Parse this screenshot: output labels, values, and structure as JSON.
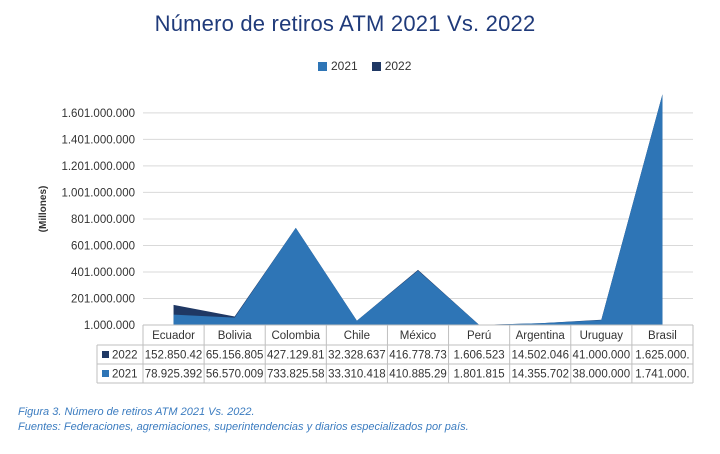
{
  "chart_data": {
    "type": "area",
    "title": "Número de retiros ATM 2021 Vs. 2022",
    "ylabel": "(Millones)",
    "xlabel": "",
    "ylim": [
      1000000,
      1751000000
    ],
    "yticks": [
      "1.000.000",
      "201.000.000",
      "401.000.000",
      "601.000.000",
      "801.000.000",
      "1.001.000.000",
      "1.201.000.000",
      "1.401.000.000",
      "1.601.000.000"
    ],
    "ytick_values": [
      1000000,
      201000000,
      401000000,
      601000000,
      801000000,
      1001000000,
      1201000000,
      1401000000,
      1601000000
    ],
    "categories": [
      "Ecuador",
      "Bolivia",
      "Colombia",
      "Chile",
      "México",
      "Perú",
      "Argentina",
      "Uruguay",
      "Brasil"
    ],
    "grid": true,
    "legend_position": "top",
    "series": [
      {
        "name": "2021",
        "color": "#2e75b6",
        "values": [
          78925392,
          56570009,
          733825580,
          33310418,
          410885290,
          1801815,
          14355702,
          38000000,
          1741000000
        ],
        "table_labels": [
          "78.925.392",
          "56.570.009",
          "733.825.58",
          "33.310.418",
          "410.885.29",
          "1.801.815",
          "14.355.702",
          "38.000.000",
          "1.741.000."
        ]
      },
      {
        "name": "2022",
        "color": "#1f3864",
        "values": [
          152850420,
          65156805,
          427129810,
          32328637,
          416778730,
          1606523,
          14502046,
          41000000,
          1625000000
        ],
        "table_labels": [
          "152.850.42",
          "65.156.805",
          "427.129.81",
          "32.328.637",
          "416.778.73",
          "1.606.523",
          "14.502.046",
          "41.000.000",
          "1.625.000."
        ]
      }
    ]
  },
  "caption": {
    "figure": "Figura 3. Número de retiros ATM 2021 Vs. 2022.",
    "sources": "Fuentes: Federaciones, agremiaciones, superintendencias y diarios especializados por país."
  }
}
